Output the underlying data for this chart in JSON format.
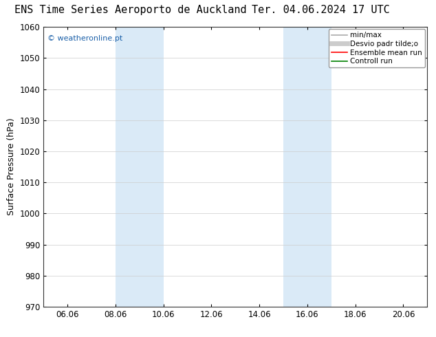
{
  "title_left": "ENS Time Series Aeroporto de Auckland",
  "title_right": "Ter. 04.06.2024 17 UTC",
  "ylabel": "Surface Pressure (hPa)",
  "ylim": [
    970,
    1060
  ],
  "yticks": [
    970,
    980,
    990,
    1000,
    1010,
    1020,
    1030,
    1040,
    1050,
    1060
  ],
  "xtick_labels": [
    "06.06",
    "08.06",
    "10.06",
    "12.06",
    "14.06",
    "16.06",
    "18.06",
    "20.06"
  ],
  "xtick_days": [
    6,
    8,
    10,
    12,
    14,
    16,
    18,
    20
  ],
  "xlim_day_start": 5,
  "xlim_day_end": 21,
  "shade_regions": [
    {
      "day_start": 8,
      "day_end": 10
    },
    {
      "day_start": 15,
      "day_end": 17
    }
  ],
  "shade_color": "#daeaf7",
  "background_color": "#ffffff",
  "watermark_text": "© weatheronline.pt",
  "watermark_color": "#1a5fa8",
  "watermark_fontsize": 8,
  "legend_items": [
    {
      "label": "min/max",
      "color": "#aaaaaa",
      "lw": 1.2
    },
    {
      "label": "Desvio padr tilde;o",
      "color": "#cccccc",
      "lw": 5
    },
    {
      "label": "Ensemble mean run",
      "color": "#ff0000",
      "lw": 1.2
    },
    {
      "label": "Controll run",
      "color": "#008000",
      "lw": 1.2
    }
  ],
  "title_fontsize": 11,
  "axis_label_fontsize": 9,
  "tick_fontsize": 8.5,
  "legend_fontsize": 7.5
}
